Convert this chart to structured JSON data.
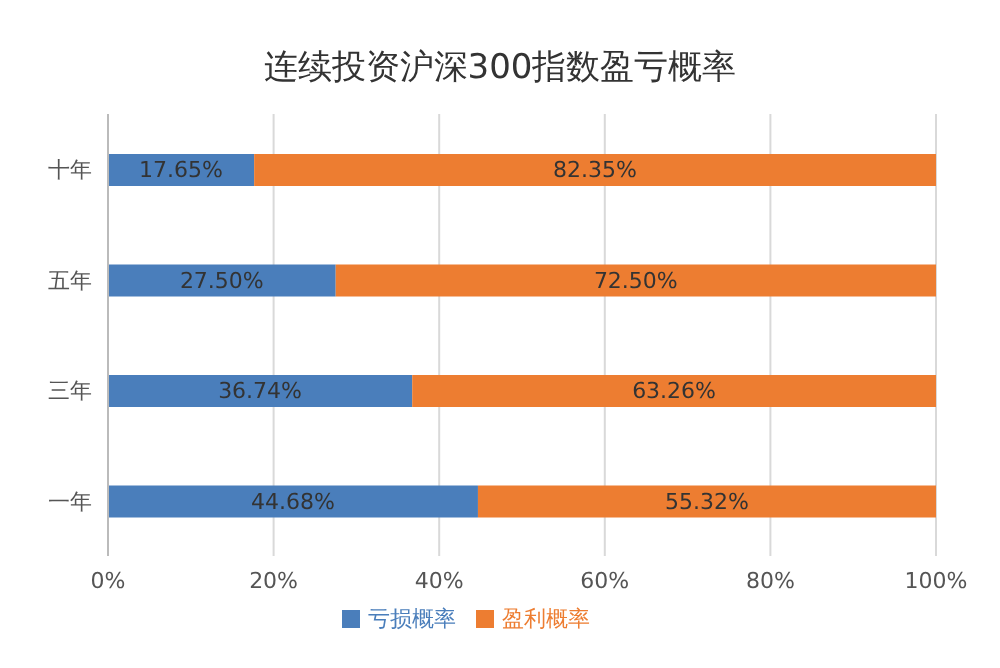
{
  "chart_data": {
    "type": "bar",
    "title": "连续投资沪深300指数盈亏概率",
    "orientation": "horizontal",
    "stacked": true,
    "categories": [
      "十年",
      "五年",
      "三年",
      "一年"
    ],
    "series": [
      {
        "name": "亏损概率",
        "color": "#4a7ebb",
        "values": [
          17.65,
          27.5,
          36.74,
          44.68
        ],
        "value_labels": [
          "17.65%",
          "27.50%",
          "36.74%",
          "44.68%"
        ]
      },
      {
        "name": "盈利概率",
        "color": "#ed7d31",
        "values": [
          82.35,
          72.5,
          63.26,
          55.32
        ],
        "value_labels": [
          "82.35%",
          "72.50%",
          "63.26%",
          "55.32%"
        ]
      }
    ],
    "xlim": [
      0,
      100
    ],
    "xticks": [
      {
        "value": 0,
        "label": "0%"
      },
      {
        "value": 20,
        "label": "20%"
      },
      {
        "value": 40,
        "label": "40%"
      },
      {
        "value": 60,
        "label": "60%"
      },
      {
        "value": 80,
        "label": "80%"
      },
      {
        "value": 100,
        "label": "100%"
      }
    ],
    "grid": "x",
    "legend": "bottom"
  }
}
